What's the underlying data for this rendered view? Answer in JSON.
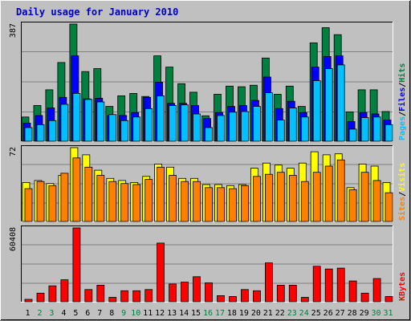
{
  "chart_data": {
    "type": "bar",
    "title": "Daily usage for January 2010",
    "colors": {
      "background": "#C0C0C0",
      "plot": "#C0C0C0",
      "grid": "#808080",
      "title": "#0000C0",
      "hits": "#008040",
      "files": "#0000FF",
      "pages": "#00C0FF",
      "visits": "#FFFF00",
      "sites": "#FF8000",
      "kbytes": "#FF0000",
      "weekend_day": "#008040",
      "weekday": "#000000"
    },
    "categories": [
      "1",
      "2",
      "3",
      "4",
      "5",
      "6",
      "7",
      "8",
      "9",
      "10",
      "11",
      "12",
      "13",
      "14",
      "15",
      "16",
      "17",
      "18",
      "19",
      "20",
      "21",
      "22",
      "23",
      "24",
      "25",
      "26",
      "27",
      "28",
      "29",
      "30",
      "31"
    ],
    "weekend_days": [
      "2",
      "3",
      "9",
      "10",
      "16",
      "17",
      "23",
      "24",
      "30",
      "31"
    ],
    "panels": [
      {
        "name": "pages-files-hits",
        "max_label": "387",
        "ylim": [
          0,
          387
        ],
        "legend": [
          {
            "text": "Pages",
            "color": "#00C0FF"
          },
          {
            "text": "/",
            "color": "#000000"
          },
          {
            "text": "Files",
            "color": "#0000FF"
          },
          {
            "text": "/",
            "color": "#000000"
          },
          {
            "text": "Hits",
            "color": "#008040"
          }
        ],
        "series": [
          {
            "name": "Hits",
            "color": "#008040",
            "values": [
              80,
              118,
              170,
              260,
              387,
              230,
              240,
              115,
              150,
              158,
              148,
              282,
              245,
              190,
              162,
              84,
              155,
              182,
              180,
              185,
              275,
              155,
              182,
              115,
              325,
              375,
              352,
              97,
              170,
              170,
              98
            ]
          },
          {
            "name": "Files",
            "color": "#0000FF",
            "values": [
              60,
              85,
              110,
              145,
              282,
              140,
              142,
              85,
              85,
              95,
              145,
              195,
              125,
              125,
              118,
              75,
              95,
              115,
              118,
              135,
              212,
              108,
              132,
              95,
              245,
              280,
              282,
              65,
              95,
              90,
              70
            ]
          },
          {
            "name": "Pages",
            "color": "#00C0FF",
            "values": [
              45,
              55,
              68,
              122,
              158,
              138,
              130,
              88,
              68,
              80,
              108,
              150,
              118,
              120,
              90,
              45,
              85,
              96,
              98,
              115,
              160,
              70,
              110,
              80,
              200,
              240,
              252,
              40,
              78,
              80,
              55
            ]
          }
        ]
      },
      {
        "name": "sites-visits",
        "max_label": "72",
        "ylim": [
          0,
          72
        ],
        "legend": [
          {
            "text": "Sites",
            "color": "#FF8000"
          },
          {
            "text": "/",
            "color": "#000000"
          },
          {
            "text": "Visits",
            "color": "#FFFF00"
          }
        ],
        "series": [
          {
            "name": "Visits",
            "color": "#FFFF00",
            "values": [
              38,
              40,
              37,
              45,
              72,
              65,
              50,
              42,
              40,
              38,
              44,
              56,
              53,
              42,
              42,
              36,
              36,
              35,
              36,
              52,
              57,
              55,
              52,
              57,
              68,
              65,
              66,
              33,
              56,
              54,
              38
            ]
          },
          {
            "name": "Sites",
            "color": "#FF8000",
            "values": [
              32,
              39,
              35,
              47,
              62,
              53,
              45,
              39,
              37,
              36,
              41,
              53,
              45,
              39,
              39,
              33,
              33,
              32,
              35,
              44,
              46,
              48,
              45,
              39,
              48,
              54,
              60,
              31,
              48,
              40,
              28
            ]
          }
        ]
      },
      {
        "name": "kbytes",
        "max_label": "60408",
        "ylim": [
          0,
          60408
        ],
        "legend": [
          {
            "text": "KBytes",
            "color": "#FF0000"
          }
        ],
        "series": [
          {
            "name": "KBytes",
            "color": "#FF0000",
            "values": [
              2000,
              7000,
              13000,
              18000,
              60408,
              10000,
              13500,
              3600,
              9000,
              9000,
              10000,
              48000,
              14500,
              16000,
              20500,
              15500,
              5000,
              4300,
              10000,
              9000,
              31800,
              13500,
              13500,
              3600,
              29000,
              26800,
              27500,
              17000,
              7000,
              19000,
              4300
            ]
          }
        ]
      }
    ]
  }
}
